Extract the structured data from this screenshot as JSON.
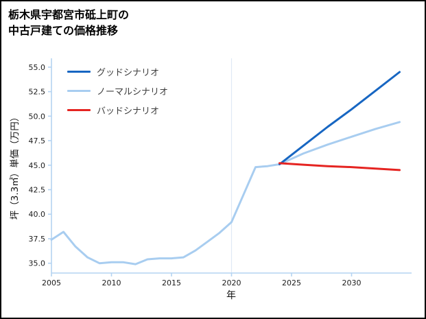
{
  "header": {
    "title_line1": "栃木県宇都宮市砥上町の",
    "title_line2": "中古戸建ての価格推移"
  },
  "legend": {
    "items": [
      {
        "label": "グッドシナリオ",
        "color": "#1766c2"
      },
      {
        "label": "ノーマルシナリオ",
        "color": "#a8cdf0"
      },
      {
        "label": "バッドシナリオ",
        "color": "#e52421"
      }
    ]
  },
  "chart_data": {
    "type": "line",
    "title": "栃木県宇都宮市砥上町の中古戸建ての価格推移",
    "xlabel": "年",
    "ylabel": "坪（3.3㎡）単価（万円）",
    "xlim": [
      2005,
      2035
    ],
    "ylim": [
      34.0,
      55.9
    ],
    "xticks": [
      2005,
      2010,
      2015,
      2020,
      2025,
      2030
    ],
    "xtick_labels": [
      "2005",
      "2010",
      "2015",
      "2020",
      "2025",
      "2030"
    ],
    "yticks": [
      35.0,
      37.5,
      40.0,
      42.5,
      45.0,
      47.5,
      50.0,
      52.5,
      55.0
    ],
    "ytick_labels": [
      "35.0",
      "37.5",
      "40.0",
      "42.5",
      "45.0",
      "47.5",
      "50.0",
      "52.5",
      "55.0"
    ],
    "grid_vline_x": 2020,
    "axis_color": "#b4d3f2",
    "grid_color": "#dfe9f5",
    "tick_label_color": "#1a1a1a",
    "legend_position": "upper-left",
    "series": [
      {
        "name": "ノーマルシナリオ",
        "color": "#a8cdf0",
        "width": 3,
        "x": [
          2005,
          2006,
          2007,
          2008,
          2009,
          2010,
          2011,
          2012,
          2013,
          2014,
          2015,
          2016,
          2017,
          2018,
          2019,
          2020,
          2021,
          2022,
          2023,
          2024,
          2026,
          2028,
          2030,
          2032,
          2034
        ],
        "y": [
          37.4,
          38.2,
          36.7,
          35.6,
          35.0,
          35.1,
          35.1,
          34.9,
          35.4,
          35.5,
          35.5,
          35.6,
          36.3,
          37.2,
          38.1,
          39.2,
          42.0,
          44.8,
          44.9,
          45.1,
          46.2,
          47.1,
          47.9,
          48.7,
          49.4
        ]
      },
      {
        "name": "グッドシナリオ",
        "color": "#1766c2",
        "width": 3,
        "x": [
          2024,
          2026,
          2028,
          2030,
          2032,
          2034
        ],
        "y": [
          45.1,
          47.0,
          48.9,
          50.7,
          52.6,
          54.5
        ]
      },
      {
        "name": "バッドシナリオ",
        "color": "#e52421",
        "width": 3,
        "x": [
          2024,
          2026,
          2028,
          2030,
          2032,
          2034
        ],
        "y": [
          45.2,
          45.05,
          44.9,
          44.8,
          44.65,
          44.5
        ]
      }
    ]
  }
}
